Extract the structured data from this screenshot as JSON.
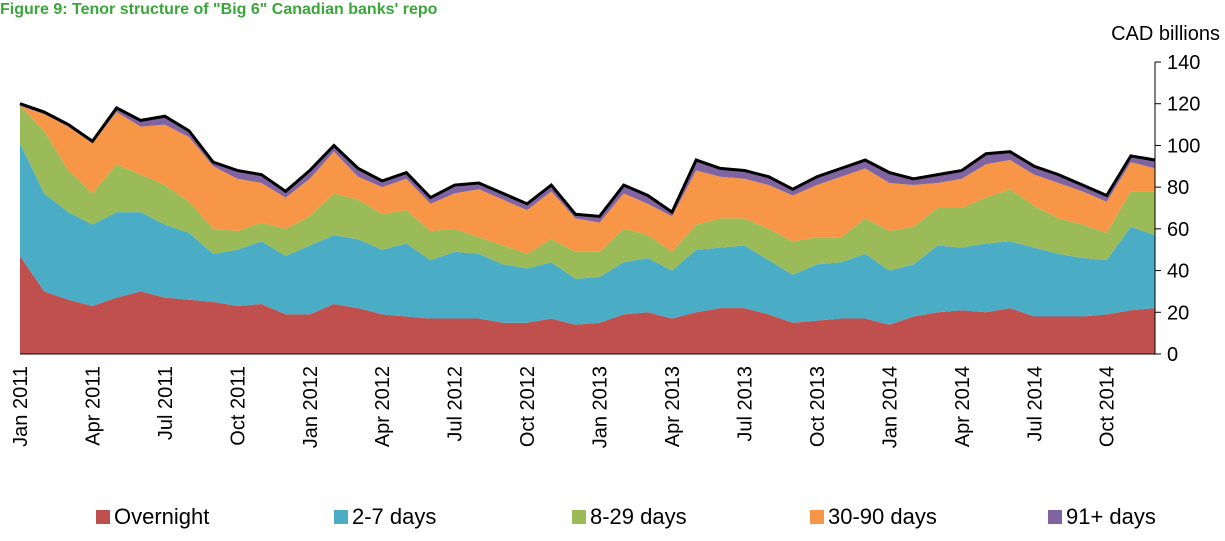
{
  "chart_data": {
    "type": "stacked_area",
    "title": "Figure 9: Tenor structure of \"Big 6\" Canadian banks' repo",
    "y_axis_label": "CAD billions",
    "categories": [
      "Jan 2011",
      null,
      null,
      "Apr 2011",
      null,
      null,
      "Jul 2011",
      null,
      null,
      "Oct 2011",
      null,
      null,
      "Jan 2012",
      null,
      null,
      "Apr 2012",
      null,
      null,
      "Jul 2012",
      null,
      null,
      "Oct 2012",
      null,
      null,
      "Jan 2013",
      null,
      null,
      "Apr 2013",
      null,
      null,
      "Jul 2013",
      null,
      null,
      "Oct 2013",
      null,
      null,
      "Jan 2014",
      null,
      null,
      "Apr 2014",
      null,
      null,
      "Jul 2014",
      null,
      null,
      "Oct 2014",
      null,
      null
    ],
    "series": [
      {
        "name": "Overnight",
        "color": "#c0504d",
        "values": [
          47,
          30,
          26,
          23,
          27,
          30,
          27,
          26,
          25,
          23,
          24,
          19,
          19,
          24,
          22,
          19,
          18,
          17,
          17,
          17,
          15,
          15,
          17,
          14,
          15,
          19,
          20,
          17,
          20,
          22,
          22,
          19,
          15,
          16,
          17,
          17,
          14,
          18,
          20,
          21,
          20,
          22,
          18,
          18,
          18,
          19,
          21,
          22
        ]
      },
      {
        "name": "2-7 days",
        "color": "#4bacc6",
        "values": [
          54,
          47,
          42,
          39,
          41,
          38,
          35,
          32,
          23,
          27,
          30,
          28,
          33,
          33,
          33,
          31,
          35,
          28,
          32,
          31,
          28,
          26,
          27,
          22,
          22,
          25,
          26,
          23,
          30,
          29,
          30,
          26,
          23,
          27,
          27,
          31,
          26,
          25,
          32,
          30,
          33,
          32,
          33,
          30,
          28,
          26,
          40,
          35
        ]
      },
      {
        "name": "8-29 days",
        "color": "#9bbb59",
        "values": [
          18,
          30,
          20,
          15,
          23,
          18,
          19,
          15,
          12,
          9,
          9,
          13,
          14,
          20,
          19,
          17,
          16,
          14,
          11,
          8,
          9,
          7,
          11,
          13,
          12,
          16,
          11,
          9,
          12,
          14,
          13,
          15,
          16,
          13,
          12,
          17,
          19,
          18,
          18,
          19,
          22,
          25,
          20,
          17,
          16,
          13,
          17,
          21
        ]
      },
      {
        "name": "30-90 days",
        "color": "#f79646",
        "values": [
          0,
          8,
          21,
          24,
          25,
          23,
          29,
          31,
          30,
          25,
          19,
          15,
          18,
          20,
          11,
          13,
          15,
          13,
          17,
          23,
          22,
          21,
          23,
          16,
          14,
          17,
          15,
          17,
          26,
          20,
          19,
          21,
          22,
          25,
          29,
          24,
          23,
          20,
          12,
          14,
          16,
          14,
          15,
          17,
          16,
          15,
          14,
          11
        ]
      },
      {
        "name": "91+ days",
        "color": "#8064a2",
        "values": [
          1,
          1,
          1,
          1,
          2,
          3,
          4,
          3,
          2,
          4,
          4,
          3,
          4,
          3,
          4,
          3,
          3,
          3,
          4,
          3,
          3,
          3,
          3,
          2,
          3,
          4,
          4,
          2,
          5,
          4,
          4,
          4,
          3,
          4,
          4,
          4,
          5,
          3,
          4,
          4,
          5,
          4,
          4,
          4,
          3,
          3,
          3,
          4
        ]
      }
    ],
    "ylim": [
      0,
      140
    ],
    "yticks": [
      0,
      20,
      40,
      60,
      80,
      100,
      120,
      140
    ],
    "y_axis_side": "right",
    "outline_color": "#000000",
    "legend": "bottom"
  }
}
